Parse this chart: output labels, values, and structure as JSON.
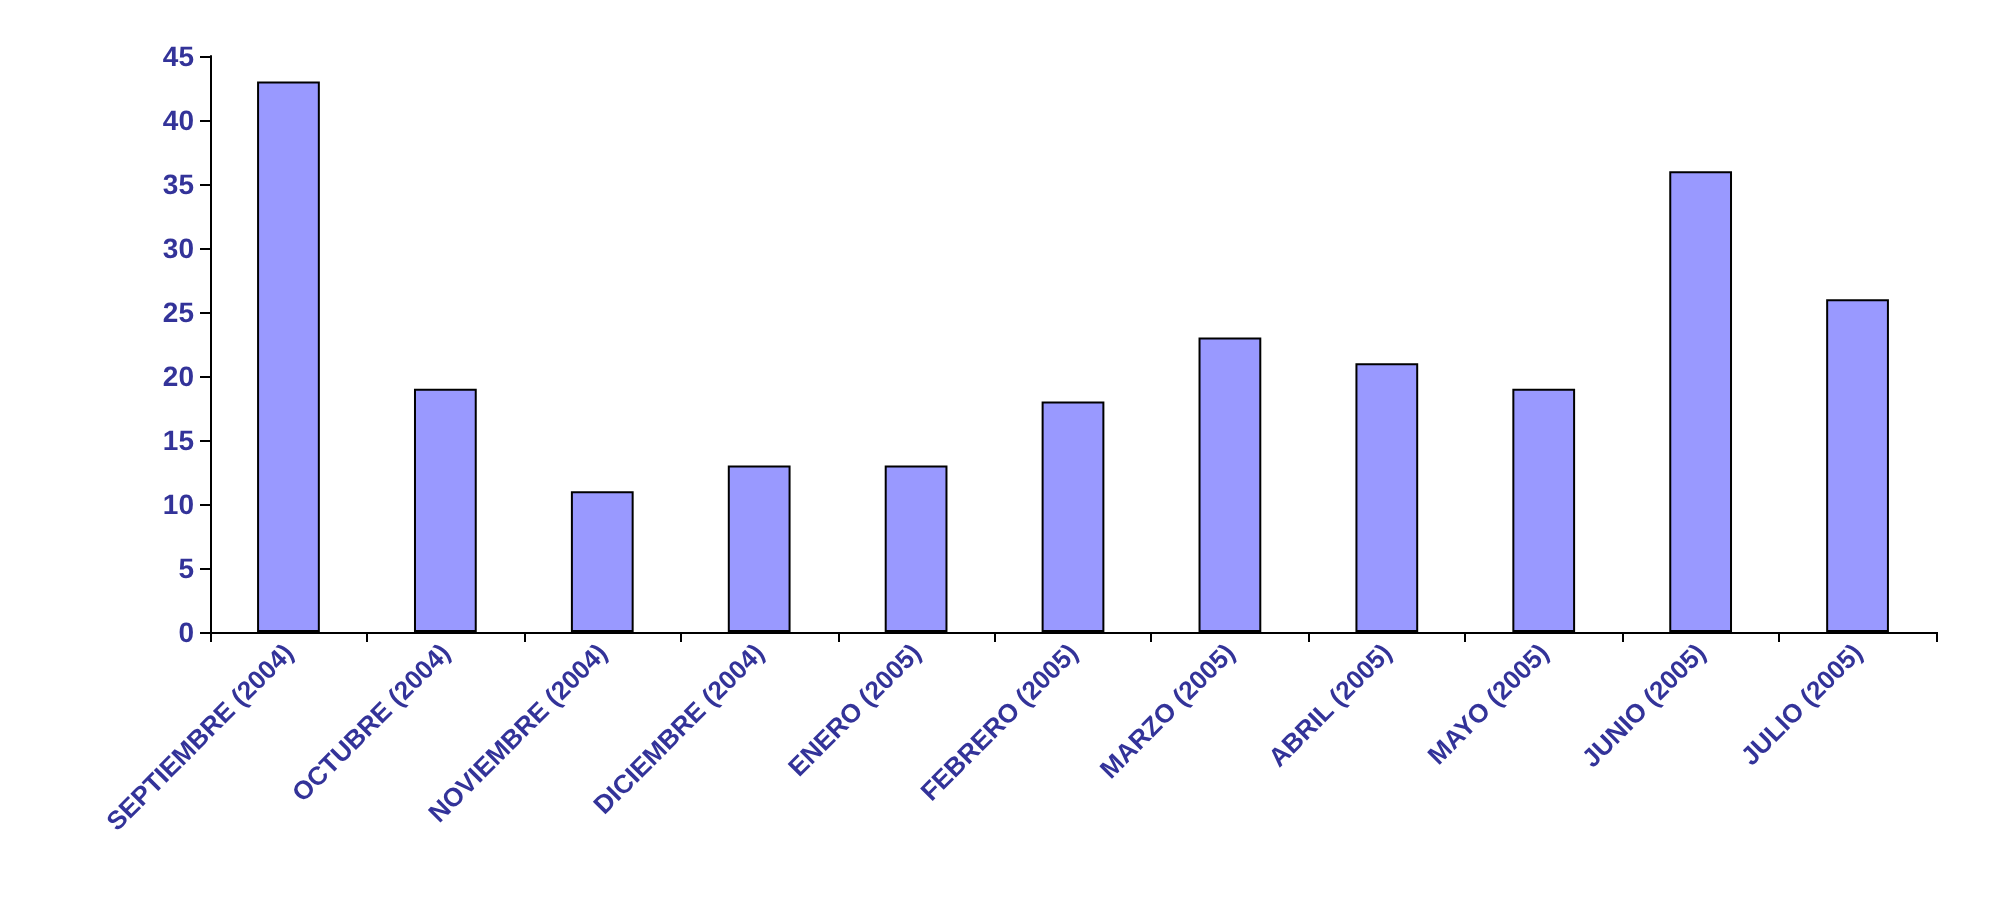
{
  "chart_data": {
    "type": "bar",
    "categories": [
      "SEPTIEMBRE (2004)",
      "OCTUBRE (2004)",
      "NOVIEMBRE (2004)",
      "DICIEMBRE (2004)",
      "ENERO (2005)",
      "FEBRERO (2005)",
      "MARZO (2005)",
      "ABRIL (2005)",
      "MAYO (2005)",
      "JUNIO (2005)",
      "JULIO (2005)"
    ],
    "values": [
      43,
      19,
      11,
      13,
      13,
      18,
      23,
      21,
      19,
      36,
      26
    ],
    "color": "#9999ff",
    "ylim": [
      0,
      45
    ],
    "yticks": [
      0,
      5,
      10,
      15,
      20,
      25,
      30,
      35,
      40,
      45
    ],
    "grid": false
  }
}
